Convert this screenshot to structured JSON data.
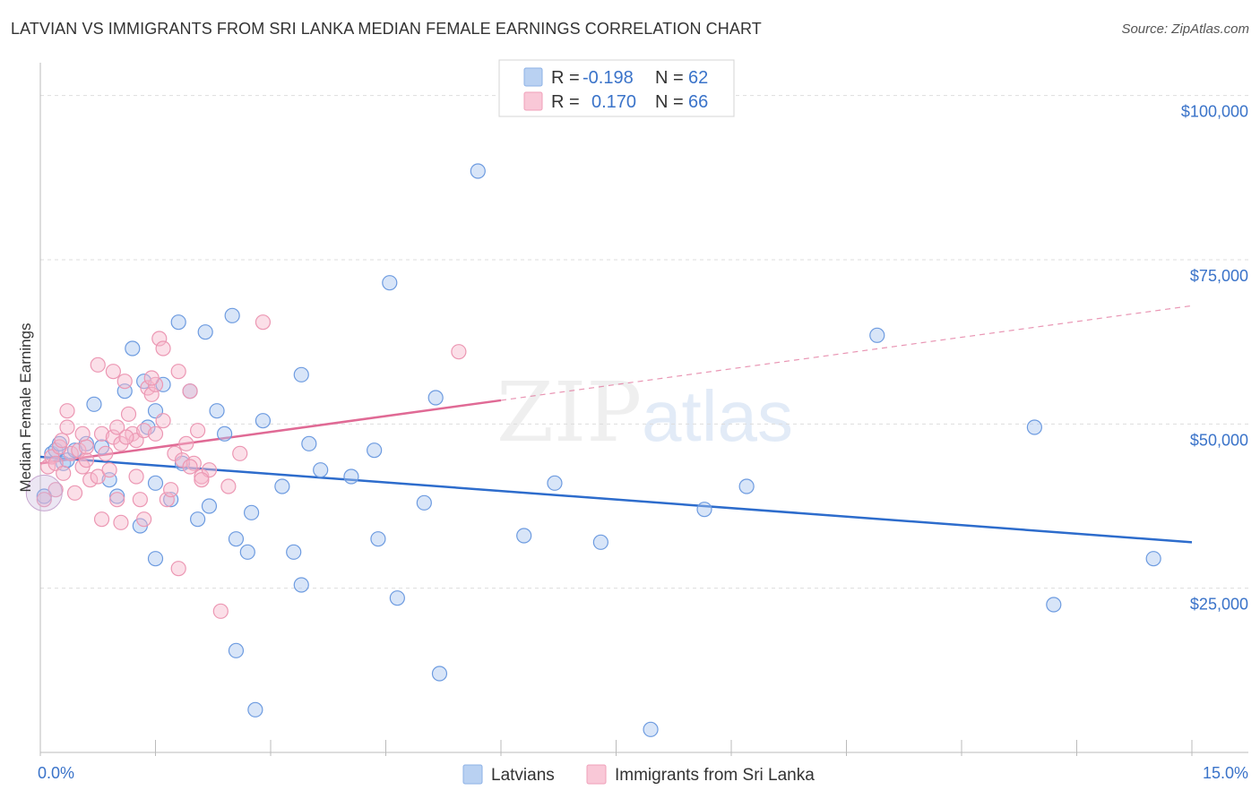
{
  "title": "LATVIAN VS IMMIGRANTS FROM SRI LANKA MEDIAN FEMALE EARNINGS CORRELATION CHART",
  "source": "Source: ZipAtlas.com",
  "watermark": {
    "zip": "ZIP",
    "atlas": "atlas"
  },
  "legend": {
    "r_label": "R =",
    "n_label": "N =",
    "rows": [
      {
        "r": "-0.198",
        "n": "62",
        "color": "#a8c6ef"
      },
      {
        "r": "0.170",
        "n": "66",
        "color": "#f7b8cb"
      }
    ]
  },
  "colors": {
    "blue": "#5b8fd8",
    "blue_line": "#2d6ccc",
    "pink": "#e88aa8",
    "pink_line": "#e06a95",
    "tick": "#3a73c9"
  },
  "chart_data": {
    "type": "scatter",
    "xlabel": "",
    "ylabel": "Median Female Earnings",
    "xlim": [
      0,
      15
    ],
    "ylim": [
      0,
      105000
    ],
    "x_tick_labels": [
      "0.0%",
      "15.0%"
    ],
    "y_ticks": [
      25000,
      50000,
      75000,
      100000
    ],
    "y_tick_labels": [
      "$25,000",
      "$50,000",
      "$75,000",
      "$100,000"
    ],
    "grid": "horizontal dashed",
    "series": [
      {
        "name": "Latvians",
        "color": "#a8c6ef",
        "trend": {
          "x": [
            0,
            15
          ],
          "y": [
            45000,
            32000
          ],
          "solid_to": 15
        },
        "points": [
          [
            0.05,
            39000
          ],
          [
            0.15,
            45500
          ],
          [
            0.2,
            46000
          ],
          [
            0.25,
            47000
          ],
          [
            0.3,
            44000
          ],
          [
            0.35,
            44500
          ],
          [
            0.6,
            47000
          ],
          [
            0.7,
            53000
          ],
          [
            0.8,
            46500
          ],
          [
            0.9,
            41500
          ],
          [
            1.0,
            39000
          ],
          [
            1.1,
            55000
          ],
          [
            1.2,
            61500
          ],
          [
            1.35,
            56500
          ],
          [
            1.4,
            49500
          ],
          [
            1.3,
            34500
          ],
          [
            1.5,
            41000
          ],
          [
            1.5,
            52000
          ],
          [
            1.6,
            56000
          ],
          [
            1.5,
            29500
          ],
          [
            1.7,
            38500
          ],
          [
            1.8,
            65500
          ],
          [
            1.85,
            44000
          ],
          [
            1.95,
            55000
          ],
          [
            2.05,
            35500
          ],
          [
            2.15,
            64000
          ],
          [
            2.2,
            37500
          ],
          [
            2.3,
            52000
          ],
          [
            2.4,
            48500
          ],
          [
            2.5,
            66500
          ],
          [
            2.55,
            32500
          ],
          [
            2.7,
            30500
          ],
          [
            2.75,
            36500
          ],
          [
            2.9,
            50500
          ],
          [
            2.55,
            15500
          ],
          [
            2.8,
            6500
          ],
          [
            3.15,
            40500
          ],
          [
            3.3,
            30500
          ],
          [
            3.4,
            25500
          ],
          [
            3.4,
            57500
          ],
          [
            3.5,
            47000
          ],
          [
            3.65,
            43000
          ],
          [
            4.05,
            42000
          ],
          [
            4.35,
            46000
          ],
          [
            4.4,
            32500
          ],
          [
            4.55,
            71500
          ],
          [
            4.65,
            23500
          ],
          [
            5.0,
            38000
          ],
          [
            5.15,
            54000
          ],
          [
            5.2,
            12000
          ],
          [
            5.7,
            88500
          ],
          [
            6.3,
            33000
          ],
          [
            6.7,
            41000
          ],
          [
            7.3,
            32000
          ],
          [
            7.95,
            3500
          ],
          [
            8.65,
            37000
          ],
          [
            9.2,
            40500
          ],
          [
            10.9,
            63500
          ],
          [
            12.95,
            49500
          ],
          [
            13.2,
            22500
          ],
          [
            14.5,
            29500
          ],
          [
            0.45,
            46000
          ]
        ]
      },
      {
        "name": "Immigrants from Sri Lanka",
        "color": "#f7b8cb",
        "trend": {
          "x": [
            0,
            15
          ],
          "y": [
            44000,
            68000
          ],
          "solid_to": 6
        },
        "points": [
          [
            0.05,
            38500
          ],
          [
            0.1,
            43500
          ],
          [
            0.15,
            45000
          ],
          [
            0.2,
            44000
          ],
          [
            0.25,
            46500
          ],
          [
            0.3,
            42500
          ],
          [
            0.35,
            49500
          ],
          [
            0.35,
            52000
          ],
          [
            0.4,
            45500
          ],
          [
            0.45,
            39500
          ],
          [
            0.5,
            46000
          ],
          [
            0.55,
            43500
          ],
          [
            0.6,
            44500
          ],
          [
            0.6,
            46500
          ],
          [
            0.65,
            41500
          ],
          [
            0.75,
            42000
          ],
          [
            0.75,
            59000
          ],
          [
            0.8,
            48500
          ],
          [
            0.8,
            35500
          ],
          [
            0.85,
            45500
          ],
          [
            0.9,
            43000
          ],
          [
            0.95,
            58000
          ],
          [
            0.95,
            48000
          ],
          [
            1.0,
            49500
          ],
          [
            1.0,
            38500
          ],
          [
            1.05,
            35000
          ],
          [
            1.1,
            56500
          ],
          [
            1.15,
            51500
          ],
          [
            1.2,
            48500
          ],
          [
            1.25,
            47500
          ],
          [
            1.25,
            42000
          ],
          [
            1.3,
            38500
          ],
          [
            1.35,
            35500
          ],
          [
            1.35,
            49000
          ],
          [
            1.4,
            55500
          ],
          [
            1.45,
            54500
          ],
          [
            1.5,
            56000
          ],
          [
            1.5,
            48500
          ],
          [
            1.55,
            63000
          ],
          [
            1.6,
            61500
          ],
          [
            1.6,
            50500
          ],
          [
            1.65,
            38500
          ],
          [
            1.7,
            40000
          ],
          [
            1.75,
            45500
          ],
          [
            1.8,
            58000
          ],
          [
            1.8,
            28000
          ],
          [
            1.85,
            44500
          ],
          [
            1.9,
            47000
          ],
          [
            1.95,
            55000
          ],
          [
            2.0,
            44000
          ],
          [
            2.05,
            49000
          ],
          [
            2.1,
            42000
          ],
          [
            2.2,
            43000
          ],
          [
            2.35,
            21500
          ],
          [
            2.45,
            40500
          ],
          [
            2.6,
            45500
          ],
          [
            2.9,
            65500
          ],
          [
            5.45,
            61000
          ],
          [
            0.2,
            40000
          ],
          [
            0.28,
            47500
          ],
          [
            0.55,
            48500
          ],
          [
            1.05,
            47000
          ],
          [
            1.45,
            57000
          ],
          [
            1.95,
            43500
          ],
          [
            2.1,
            41500
          ],
          [
            1.12,
            48000
          ]
        ]
      }
    ]
  }
}
